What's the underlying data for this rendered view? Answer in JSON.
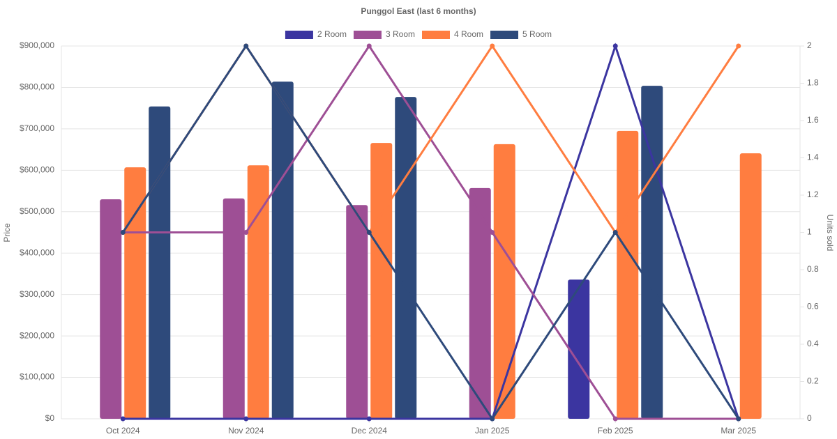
{
  "chart_data": {
    "type": "bar",
    "title": "Punggol East (last 6 months)",
    "y_label": "Price",
    "y2_label": "Units sold",
    "categories": [
      "Oct 2024",
      "Nov 2024",
      "Dec 2024",
      "Jan 2025",
      "Feb 2025",
      "Mar 2025"
    ],
    "series": [
      {
        "name": "2 Room",
        "color": "#3b35a0",
        "values": [
          null,
          null,
          null,
          null,
          336000,
          null
        ],
        "units": [
          0,
          0,
          0,
          0,
          2,
          0
        ]
      },
      {
        "name": "3 Room",
        "color": "#9e4f95",
        "values": [
          530000,
          532000,
          516000,
          557000,
          null,
          null
        ],
        "units": [
          1,
          1,
          2,
          1,
          0,
          0
        ]
      },
      {
        "name": "4 Room",
        "color": "#ff7d40",
        "values": [
          607000,
          612000,
          666000,
          663000,
          695000,
          641000
        ],
        "units": [
          1,
          2,
          1,
          2,
          1,
          2
        ]
      },
      {
        "name": "5 Room",
        "color": "#2e4a7b",
        "values": [
          754000,
          814000,
          777000,
          null,
          804000,
          null
        ],
        "units": [
          1,
          2,
          1,
          0,
          1,
          0
        ]
      }
    ],
    "ylim": [
      0,
      900000
    ],
    "yticks": [
      {
        "value": 0,
        "label": "$0"
      },
      {
        "value": 100000,
        "label": "$100,000"
      },
      {
        "value": 200000,
        "label": "$200,000"
      },
      {
        "value": 300000,
        "label": "$300,000"
      },
      {
        "value": 400000,
        "label": "$400,000"
      },
      {
        "value": 500000,
        "label": "$500,000"
      },
      {
        "value": 600000,
        "label": "$600,000"
      },
      {
        "value": 700000,
        "label": "$700,000"
      },
      {
        "value": 800000,
        "label": "$800,000"
      },
      {
        "value": 900000,
        "label": "$900,000"
      }
    ],
    "y2lim": [
      0,
      2
    ],
    "y2ticks": [
      0,
      0.2,
      0.4,
      0.6,
      0.8,
      1,
      1.2,
      1.4,
      1.6,
      1.8,
      2
    ],
    "grid": true
  }
}
